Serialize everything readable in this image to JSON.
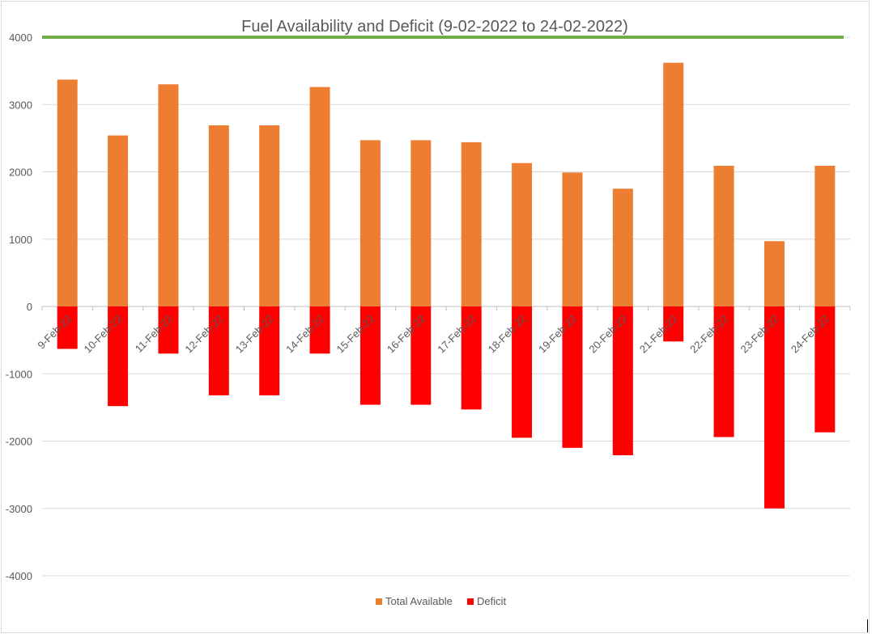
{
  "chart_data": {
    "type": "bar",
    "title": "Fuel Availability and Deficit (9-02-2022 to 24-02-2022)",
    "categories": [
      "9-Feb-22",
      "10-Feb-22",
      "11-Feb-22",
      "12-Feb-22",
      "13-Feb-22",
      "14-Feb-22",
      "15-Feb-22",
      "16-Feb-22",
      "17-Feb-22",
      "18-Feb-22",
      "19-Feb-22",
      "20-Feb-22",
      "21-Feb-22",
      "22-Feb-22",
      "23-Feb-22",
      "24-Feb-22"
    ],
    "series": [
      {
        "name": "Total Available",
        "color": "#ED7D31",
        "values": [
          3370,
          2540,
          3300,
          2690,
          2690,
          3260,
          2470,
          2470,
          2440,
          2130,
          1990,
          1750,
          3620,
          2090,
          970,
          2090
        ]
      },
      {
        "name": "Deficit",
        "color": "#FF0000",
        "values": [
          -630,
          -1480,
          -700,
          -1320,
          -1320,
          -700,
          -1460,
          -1460,
          -1530,
          -1950,
          -2100,
          -2210,
          -520,
          -1940,
          -3000,
          -1870
        ]
      }
    ],
    "reference_line": {
      "value": 4000,
      "color": "#70AD47"
    },
    "yticks": [
      4000,
      3000,
      2000,
      1000,
      0,
      -1000,
      -2000,
      -3000,
      -4000
    ],
    "ylim": [
      -4000,
      4000
    ],
    "xlabel": "",
    "ylabel": "",
    "grid": true,
    "legend_position": "bottom"
  }
}
